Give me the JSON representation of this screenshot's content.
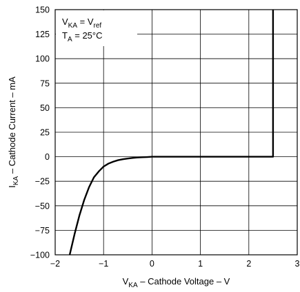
{
  "chart_data": {
    "type": "line",
    "x": [
      -1.7,
      -1.6,
      -1.5,
      -1.4,
      -1.3,
      -1.2,
      -1.1,
      -1.0,
      -0.9,
      -0.8,
      -0.7,
      -0.6,
      -0.5,
      -0.4,
      -0.3,
      -0.2,
      -0.1,
      0.0,
      0.5,
      1.0,
      1.5,
      2.0,
      2.5,
      2.5
    ],
    "series": [
      {
        "values": [
          -100,
          -79,
          -60,
          -44,
          -31,
          -21,
          -15,
          -10,
          -7,
          -5,
          -3.5,
          -2.5,
          -1.8,
          -1.2,
          -0.8,
          -0.5,
          -0.3,
          0,
          0,
          0,
          0,
          0,
          0,
          150
        ]
      }
    ],
    "xlabel_main": "V",
    "xlabel_sub": "KA",
    "xlabel_rest": " – Cathode Voltage – V",
    "ylabel_main": "I",
    "ylabel_sub": "KA",
    "ylabel_rest": " – Cathode Current – mA",
    "xlim": [
      -2,
      3
    ],
    "ylim": [
      -100,
      150
    ],
    "x_ticks": [
      -2,
      -1,
      0,
      1,
      2,
      3
    ],
    "x_tick_labels": [
      "−2",
      "−1",
      "0",
      "1",
      "2",
      "3"
    ],
    "y_ticks": [
      150,
      125,
      100,
      75,
      50,
      25,
      0,
      -25,
      -50,
      -75,
      -100
    ],
    "y_tick_labels": [
      "150",
      "125",
      "100",
      "75",
      "50",
      "25",
      "0",
      "−25",
      "−50",
      "−75",
      "−100"
    ],
    "grid": true,
    "annotations": {
      "line1": {
        "main": "V",
        "sub": "KA",
        "mid": " = V",
        "sub2": "ref"
      },
      "line2": {
        "main": "T",
        "sub": "A",
        "rest": " = 25°C"
      }
    }
  }
}
